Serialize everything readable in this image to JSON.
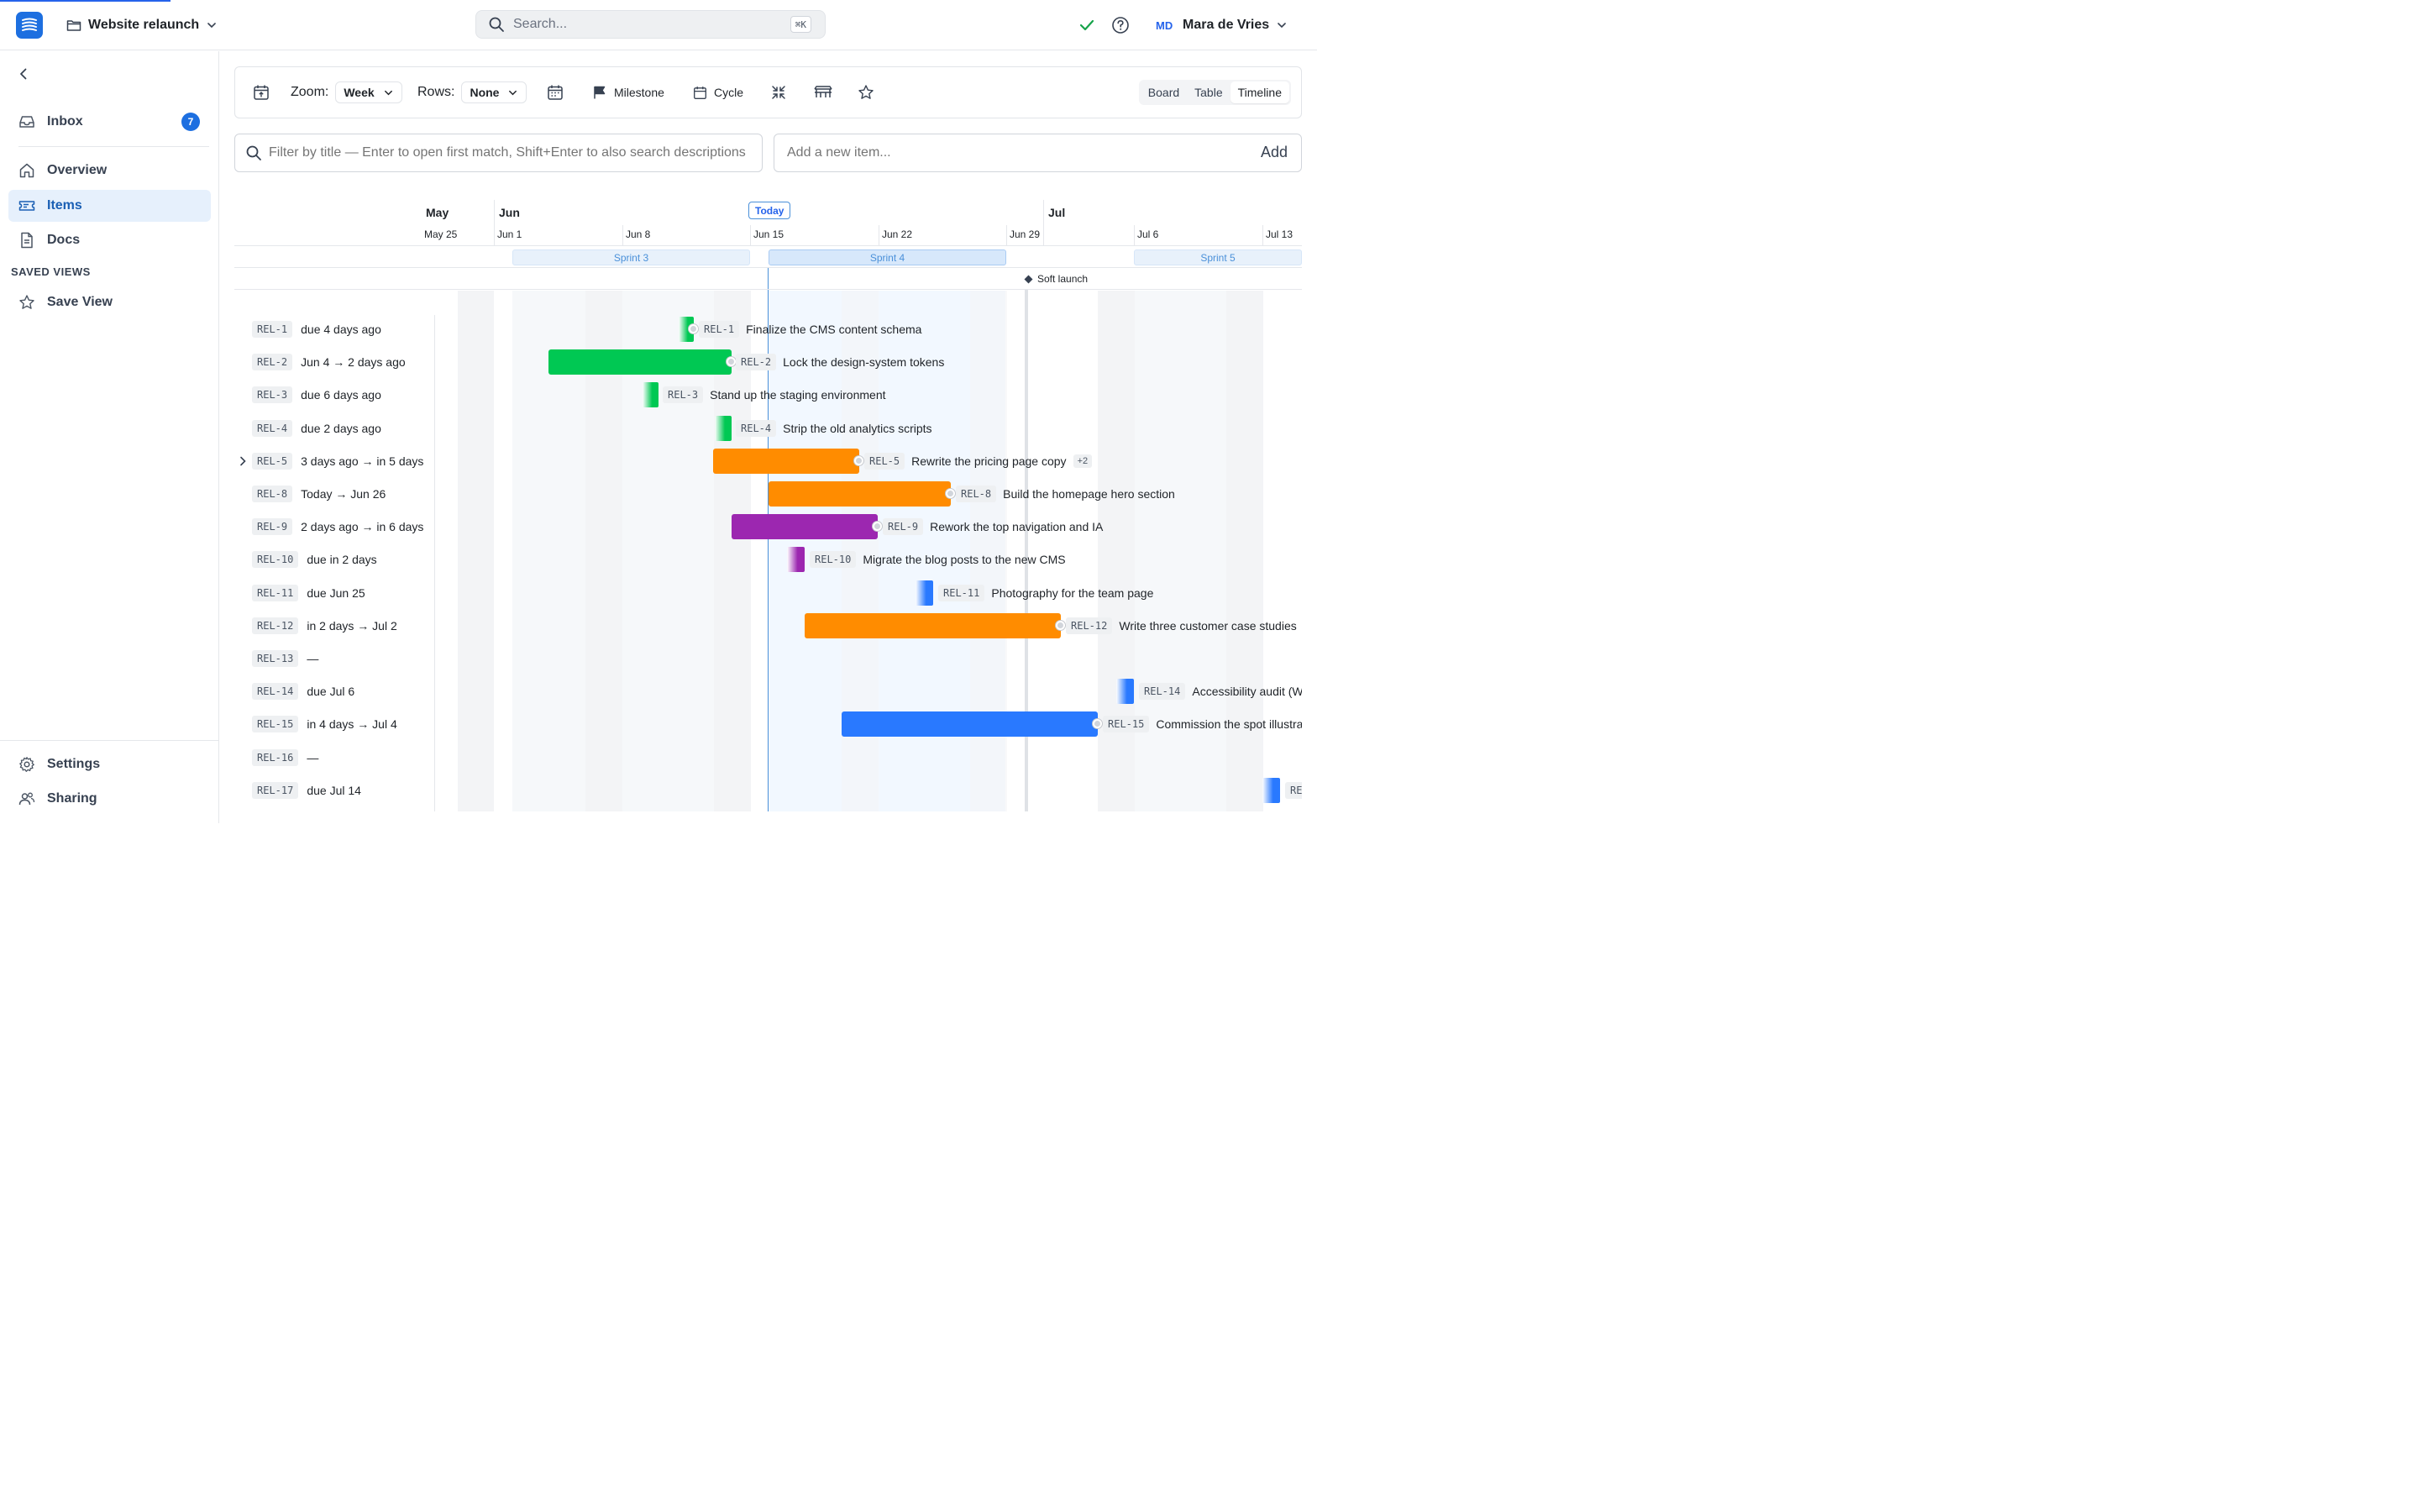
{
  "topbar": {
    "project": "Website relaunch",
    "search_placeholder": "Search...",
    "search_shortcut": "⌘K",
    "user_initials": "MD",
    "user_name": "Mara de Vries"
  },
  "sidebar": {
    "items": [
      {
        "label": "Inbox",
        "icon": "inbox-icon",
        "badge": "7"
      },
      {
        "label": "Overview",
        "icon": "home-icon"
      },
      {
        "label": "Items",
        "icon": "ticket-icon",
        "active": true
      },
      {
        "label": "Docs",
        "icon": "document-icon"
      }
    ],
    "saved_views_heading": "SAVED VIEWS",
    "save_view": "Save View",
    "settings": "Settings",
    "sharing": "Sharing"
  },
  "toolbar": {
    "zoom_label": "Zoom:",
    "zoom_value": "Week",
    "rows_label": "Rows:",
    "rows_value": "None",
    "milestone": "Milestone",
    "cycle": "Cycle",
    "views": [
      "Board",
      "Table",
      "Timeline"
    ],
    "active_view": "Timeline"
  },
  "filter": {
    "placeholder": "Filter by title — Enter to open first match, Shift+Enter to also search descriptions"
  },
  "add_item": {
    "placeholder": "Add a new item...",
    "button": "Add"
  },
  "timeline": {
    "months": [
      "May",
      "Jun",
      "Jul"
    ],
    "weeks": [
      "May 25",
      "Jun 1",
      "Jun 8",
      "Jun 15",
      "Jun 22",
      "Jun 29",
      "Jul 6",
      "Jul 13"
    ],
    "today_label": "Today",
    "sprints": [
      "Sprint 3",
      "Sprint 4",
      "Sprint 5"
    ],
    "milestone": "Soft launch",
    "colors": {
      "green": "#00c853",
      "orange": "#ff8c00",
      "purple": "#9c27b0",
      "blue": "#2979ff"
    },
    "rows": [
      {
        "id": "REL-1",
        "due": "due 4 days ago",
        "title": "Finalize the CMS content schema",
        "color": "green"
      },
      {
        "id": "REL-2",
        "due": "Jun 4 → 2 days ago",
        "title": "Lock the design-system tokens",
        "color": "green"
      },
      {
        "id": "REL-3",
        "due": "due 6 days ago",
        "title": "Stand up the staging environment",
        "color": "green"
      },
      {
        "id": "REL-4",
        "due": "due 2 days ago",
        "title": "Strip the old analytics scripts",
        "color": "green"
      },
      {
        "id": "REL-5",
        "due": "3 days ago → in 5 days",
        "title": "Rewrite the pricing page copy",
        "extra": "+2",
        "color": "orange",
        "expandable": true
      },
      {
        "id": "REL-8",
        "due": "Today → Jun 26",
        "title": "Build the homepage hero section",
        "color": "orange"
      },
      {
        "id": "REL-9",
        "due": "2 days ago → in 6 days",
        "title": "Rework the top navigation and IA",
        "color": "purple"
      },
      {
        "id": "REL-10",
        "due": "due in 2 days",
        "title": "Migrate the blog posts to the new CMS",
        "color": "purple"
      },
      {
        "id": "REL-11",
        "due": "due Jun 25",
        "title": "Photography for the team page",
        "color": "blue"
      },
      {
        "id": "REL-12",
        "due": "in 2 days → Jul 2",
        "title": "Write three customer case studies",
        "color": "orange"
      },
      {
        "id": "REL-13",
        "due": "—"
      },
      {
        "id": "REL-14",
        "due": "due Jul 6",
        "title": "Accessibility audit (W",
        "color": "blue"
      },
      {
        "id": "REL-15",
        "due": "in 4 days → Jul 4",
        "title": "Commission the spot illustra",
        "color": "blue"
      },
      {
        "id": "REL-16",
        "due": "—"
      },
      {
        "id": "REL-17",
        "due": "due Jul 14",
        "title": "RE",
        "color": "blue"
      }
    ]
  }
}
